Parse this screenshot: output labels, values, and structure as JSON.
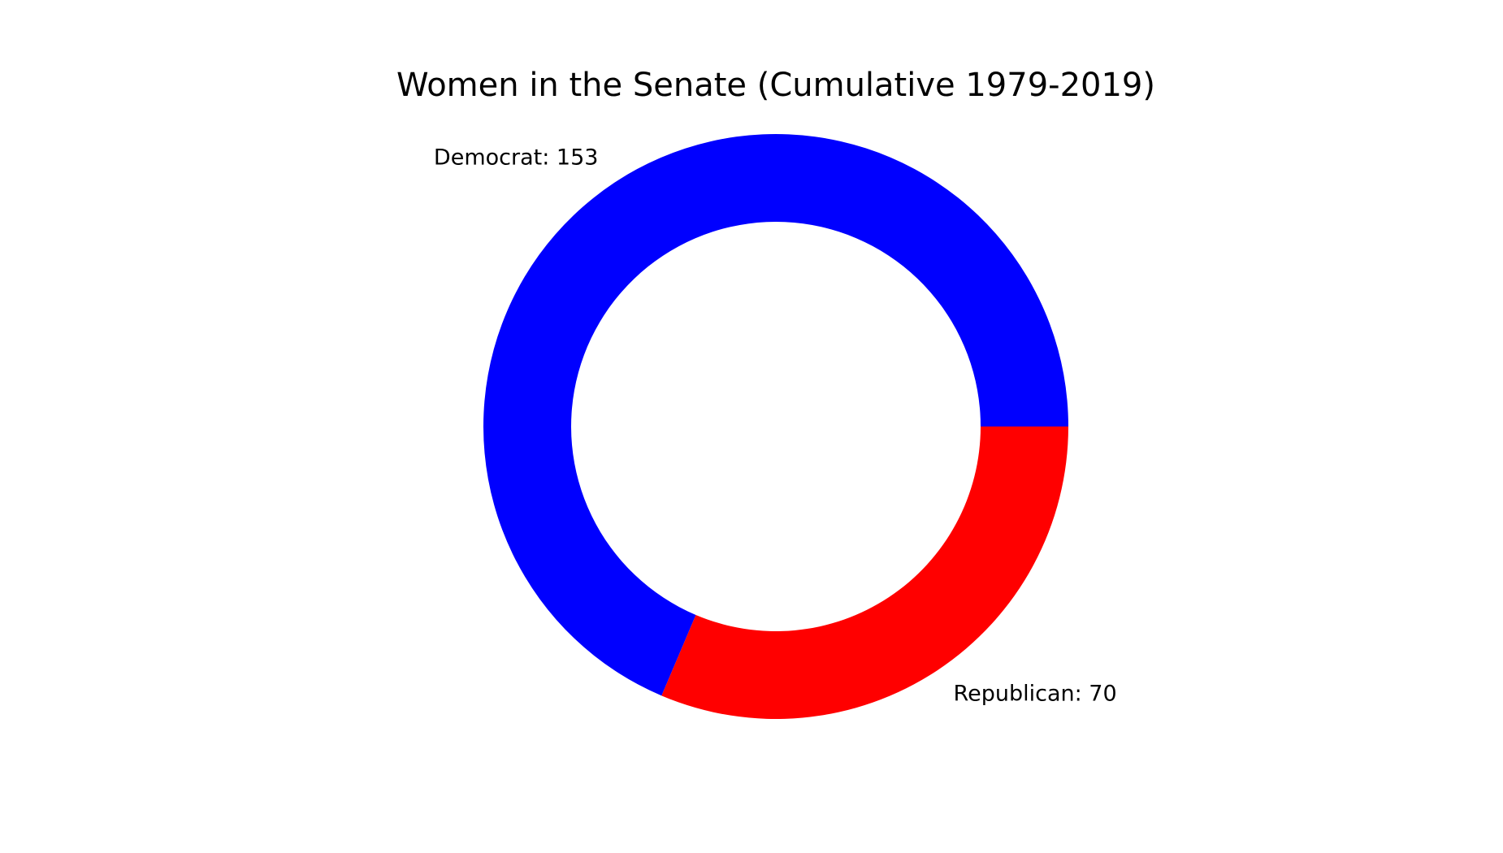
{
  "chart_data": {
    "type": "pie",
    "title": "Women in the Senate (Cumulative 1979-2019)",
    "donut": true,
    "start_angle_deg": 0,
    "direction": "counterclockwise",
    "slices": [
      {
        "name": "Democrat",
        "value": 153,
        "color": "#0000ff",
        "label": "Democrat: 153"
      },
      {
        "name": "Republican",
        "value": 70,
        "color": "#ff0000",
        "label": "Republican: 70"
      }
    ]
  }
}
